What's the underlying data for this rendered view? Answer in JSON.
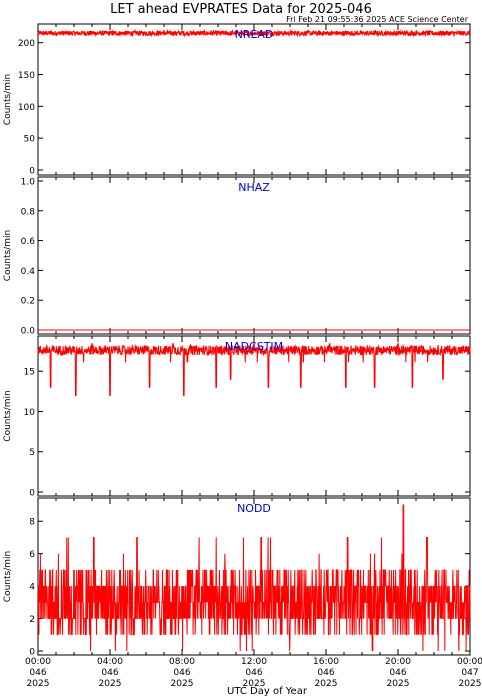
{
  "title": "LET ahead EVPRATES Data for 2025-046",
  "timestamp": "Fri Feb 21 09:55:36 2025 ACE Science Center",
  "xaxis_title": "UTC Day of Year",
  "colors": {
    "series": "#ff0000",
    "panel_label": "#0000cc",
    "axes": "#000000"
  },
  "chart_data": [
    {
      "type": "line",
      "panel_label": "NREAD",
      "ylabel": "Counts/min",
      "ylim": [
        0,
        220
      ],
      "yticks": [
        "0",
        "50",
        "100",
        "150",
        "200"
      ],
      "pattern": {
        "base": 215,
        "jitter": 4,
        "spikes_down": [],
        "spikes_up": []
      }
    },
    {
      "type": "line",
      "panel_label": "NHAZ",
      "ylabel": "Counts/min",
      "ylim": [
        0,
        1
      ],
      "yticks": [
        "0.0",
        "0.2",
        "0.4",
        "0.6",
        "0.8",
        "1.0"
      ],
      "pattern": {
        "base": 0,
        "jitter": 0,
        "spikes_down": [],
        "spikes_up": []
      }
    },
    {
      "type": "line",
      "panel_label": "NADCSTIM",
      "ylabel": "Counts/min",
      "ylim": [
        0,
        18
      ],
      "yticks": [
        "0",
        "5",
        "10",
        "15"
      ],
      "pattern": {
        "base": 17.6,
        "jitter": 0.6,
        "spikes_down": [
          [
            0.7,
            13
          ],
          [
            2.1,
            12
          ],
          [
            4.0,
            12
          ],
          [
            6.2,
            13
          ],
          [
            8.1,
            12
          ],
          [
            9.9,
            13
          ],
          [
            10.7,
            14
          ],
          [
            12.8,
            13
          ],
          [
            14.6,
            13
          ],
          [
            17.1,
            13
          ],
          [
            18.7,
            13
          ],
          [
            20.8,
            13
          ],
          [
            22.5,
            14
          ]
        ],
        "spikes_up": [
          [
            3.0,
            18.4
          ],
          [
            7.5,
            18.4
          ],
          [
            12.0,
            18.4
          ],
          [
            16.2,
            18.4
          ],
          [
            20.0,
            18.4
          ]
        ]
      }
    },
    {
      "type": "line",
      "panel_label": "NODD",
      "ylabel": "Counts/min",
      "ylim": [
        0,
        9
      ],
      "yticks": [
        "0",
        "2",
        "4",
        "6",
        "8"
      ],
      "pattern": {
        "min": 1,
        "max": 5,
        "peaks": [
          [
            5.5,
            7
          ],
          [
            12.4,
            7
          ],
          [
            20.3,
            9
          ],
          [
            21.6,
            7
          ],
          [
            3.1,
            7
          ],
          [
            17.2,
            7
          ]
        ]
      }
    }
  ],
  "x_ticks": [
    {
      "time": "00:00",
      "doy": "046",
      "year": "2025"
    },
    {
      "time": "04:00",
      "doy": "046",
      "year": "2025"
    },
    {
      "time": "08:00",
      "doy": "046",
      "year": "2025"
    },
    {
      "time": "12:00",
      "doy": "046",
      "year": "2025"
    },
    {
      "time": "16:00",
      "doy": "046",
      "year": "2025"
    },
    {
      "time": "20:00",
      "doy": "046",
      "year": "2025"
    },
    {
      "time": "00:00",
      "doy": "047",
      "year": "2025"
    }
  ],
  "x_range_hours": [
    0,
    24
  ]
}
